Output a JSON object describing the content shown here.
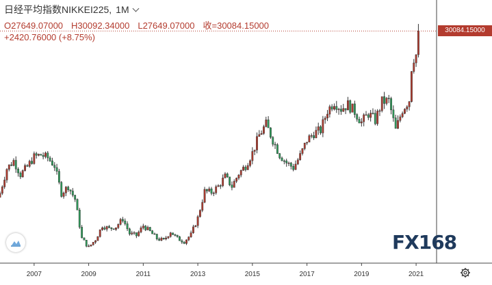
{
  "header": {
    "title": "日经平均指数NIKKEI225,",
    "interval": "1M",
    "open": "O27649.07000",
    "high": "H30092.34000",
    "low": "L27649.07000",
    "close": "收=30084.15000",
    "change": "+2420.76000 (+8.75%)"
  },
  "price_tag": "30084.15000",
  "watermark": "FX168",
  "colors": {
    "up": "#b33b2e",
    "down": "#2e9e5b",
    "grid": "#e8e8e8",
    "axis": "#444444"
  },
  "icons": {
    "logo": "cloud-logo-icon",
    "settings": "gear-icon"
  },
  "chart_data": {
    "type": "candlestick",
    "title": "日经平均指数NIKKEI225",
    "interval": "1M",
    "x_tick_labels": [
      "2007",
      "2009",
      "2011",
      "2013",
      "2015",
      "2017",
      "2019",
      "2021"
    ],
    "xlim": [
      "2005-10",
      "2021-10"
    ],
    "ylim": [
      6500,
      31500
    ],
    "grid": false,
    "last_price": 30084.15,
    "series": [
      {
        "name": "日经平均指数NIKKEI225",
        "x": [
          "2005-10",
          "2006-01",
          "2006-04",
          "2006-07",
          "2006-10",
          "2007-01",
          "2007-04",
          "2007-07",
          "2007-10",
          "2008-01",
          "2008-04",
          "2008-07",
          "2008-10",
          "2009-01",
          "2009-04",
          "2009-07",
          "2009-10",
          "2010-01",
          "2010-04",
          "2010-07",
          "2010-10",
          "2011-01",
          "2011-04",
          "2011-07",
          "2011-10",
          "2012-01",
          "2012-04",
          "2012-07",
          "2012-10",
          "2013-01",
          "2013-04",
          "2013-07",
          "2013-10",
          "2014-01",
          "2014-04",
          "2014-07",
          "2014-10",
          "2015-01",
          "2015-04",
          "2015-07",
          "2015-10",
          "2016-01",
          "2016-04",
          "2016-07",
          "2016-10",
          "2017-01",
          "2017-04",
          "2017-07",
          "2017-10",
          "2018-01",
          "2018-04",
          "2018-07",
          "2018-10",
          "2019-01",
          "2019-04",
          "2019-07",
          "2019-10",
          "2020-01",
          "2020-04",
          "2020-07",
          "2020-10",
          "2020-11",
          "2020-12",
          "2021-01",
          "2021-02"
        ],
        "close": [
          13600,
          16100,
          16900,
          15500,
          16300,
          17300,
          17500,
          17200,
          16400,
          13600,
          14300,
          13000,
          9000,
          8100,
          8900,
          10300,
          10000,
          10200,
          11000,
          9500,
          9300,
          10300,
          9700,
          9000,
          8800,
          9700,
          9000,
          8700,
          9400,
          11100,
          13800,
          13700,
          14300,
          15300,
          14300,
          15600,
          16400,
          17700,
          19500,
          20600,
          19000,
          17500,
          16700,
          16200,
          17400,
          19000,
          19700,
          20000,
          22000,
          22900,
          22200,
          22600,
          21900,
          20800,
          21700,
          21000,
          22900,
          23000,
          20000,
          22100,
          23100,
          26400,
          27400,
          27663,
          30084
        ]
      }
    ]
  }
}
